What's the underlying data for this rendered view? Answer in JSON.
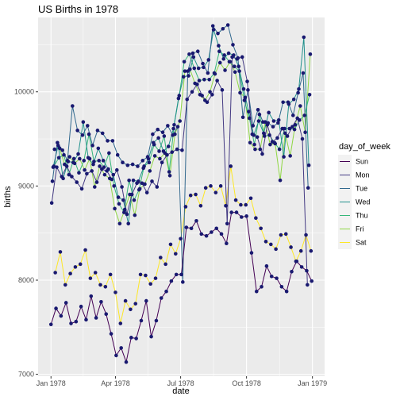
{
  "chart_data": {
    "type": "line",
    "title": "US Births in 1978",
    "xlabel": "date",
    "ylabel": "births",
    "x_ticks": [
      "Jan 1978",
      "Apr 1978",
      "Jul 1978",
      "Oct 1978",
      "Jan 1979"
    ],
    "y_ticks": [
      "7000",
      "8000",
      "9000",
      "10000"
    ],
    "ylim": [
      6980,
      10790
    ],
    "xlim_start": "1977-12-14",
    "xlim_end": "1979-01-18",
    "legend_position": "right",
    "legend": {
      "title": "day_of_week",
      "entries": [
        {
          "label": "Sun",
          "color": "#440154"
        },
        {
          "label": "Mon",
          "color": "#443A83"
        },
        {
          "label": "Tue",
          "color": "#31688E"
        },
        {
          "label": "Wed",
          "color": "#21908C"
        },
        {
          "label": "Thu",
          "color": "#35B779"
        },
        {
          "label": "Fri",
          "color": "#8FD744"
        },
        {
          "label": "Sat",
          "color": "#FDE725"
        }
      ]
    },
    "point_color": "#191970",
    "grid": true,
    "panel_background": "#EBEBEB",
    "line_note": "",
    "series": [
      {
        "name": "Sun",
        "x": [
          "1978-01-01",
          "1978-01-08",
          "1978-01-15",
          "1978-01-22",
          "1978-01-29",
          "1978-02-05",
          "1978-02-12",
          "1978-02-19",
          "1978-02-26",
          "1978-03-05",
          "1978-03-12",
          "1978-03-19",
          "1978-03-26",
          "1978-04-02",
          "1978-04-09",
          "1978-04-16",
          "1978-04-23",
          "1978-04-30",
          "1978-05-07",
          "1978-05-14",
          "1978-05-21",
          "1978-05-28",
          "1978-06-04",
          "1978-06-11",
          "1978-06-18",
          "1978-06-25",
          "1978-07-02",
          "1978-07-09",
          "1978-07-16",
          "1978-07-23",
          "1978-07-30",
          "1978-08-06",
          "1978-08-13",
          "1978-08-20",
          "1978-08-27",
          "1978-09-03",
          "1978-09-10",
          "1978-09-17",
          "1978-09-24",
          "1978-10-01",
          "1978-10-08",
          "1978-10-15",
          "1978-10-22",
          "1978-10-29",
          "1978-11-05",
          "1978-11-12",
          "1978-11-19",
          "1978-11-26",
          "1978-12-03",
          "1978-12-10",
          "1978-12-17",
          "1978-12-24",
          "1978-12-31"
        ],
        "values": [
          7530,
          7700,
          7620,
          7760,
          7540,
          7560,
          7720,
          7580,
          7830,
          7600,
          7770,
          7640,
          7430,
          7200,
          7280,
          7130,
          7390,
          7380,
          7570,
          7780,
          7400,
          7570,
          7810,
          7880,
          7990,
          8060,
          8060,
          8560,
          8550,
          8630,
          8490,
          8470,
          8510,
          8550,
          8490,
          8390,
          8720,
          8720,
          8670,
          8680,
          8290,
          7880,
          7930,
          8150,
          8040,
          8020,
          7930,
          7880,
          8090,
          8200,
          8140,
          8100,
          7990
        ]
      },
      {
        "name": "Sat",
        "x": [
          "1978-01-07",
          "1978-01-14",
          "1978-01-21",
          "1978-01-28",
          "1978-02-04",
          "1978-02-11",
          "1978-02-18",
          "1978-02-25",
          "1978-03-04",
          "1978-03-11",
          "1978-03-18",
          "1978-03-25",
          "1978-04-01",
          "1978-04-08",
          "1978-04-15",
          "1978-04-22",
          "1978-04-29",
          "1978-05-06",
          "1978-05-13",
          "1978-05-20",
          "1978-05-27",
          "1978-06-03",
          "1978-06-10",
          "1978-06-17",
          "1978-06-24",
          "1978-07-01",
          "1978-07-08",
          "1978-07-15",
          "1978-07-22",
          "1978-07-29",
          "1978-08-05",
          "1978-08-12",
          "1978-08-19",
          "1978-08-26",
          "1978-09-02",
          "1978-09-09",
          "1978-09-16",
          "1978-09-23",
          "1978-09-30",
          "1978-10-07",
          "1978-10-14",
          "1978-10-21",
          "1978-10-28",
          "1978-11-04",
          "1978-11-11",
          "1978-11-18",
          "1978-11-25",
          "1978-12-02",
          "1978-12-09",
          "1978-12-16",
          "1978-12-23",
          "1978-12-30"
        ],
        "values": [
          8080,
          8300,
          7950,
          8070,
          8140,
          8170,
          8320,
          8020,
          8080,
          7950,
          7930,
          8060,
          7870,
          7540,
          7780,
          7690,
          7750,
          8060,
          8050,
          7960,
          8020,
          8240,
          8170,
          8380,
          8280,
          8440,
          8780,
          8900,
          8910,
          8790,
          8980,
          9000,
          8930,
          9000,
          8790,
          9210,
          8850,
          8800,
          8800,
          8870,
          8660,
          8550,
          8410,
          8380,
          8330,
          8480,
          8490,
          8350,
          8200,
          8310,
          8480,
          8310
        ]
      },
      {
        "name": "Mon",
        "x": [
          "1978-01-02",
          "1978-01-09",
          "1978-01-16",
          "1978-01-23",
          "1978-01-30",
          "1978-02-06",
          "1978-02-13",
          "1978-02-20",
          "1978-02-27",
          "1978-03-06",
          "1978-03-13",
          "1978-03-20",
          "1978-03-27",
          "1978-04-03",
          "1978-04-10",
          "1978-04-17",
          "1978-04-24",
          "1978-05-01",
          "1978-05-08",
          "1978-05-15",
          "1978-05-22",
          "1978-05-29",
          "1978-06-05",
          "1978-06-12",
          "1978-06-19",
          "1978-06-26",
          "1978-07-03",
          "1978-07-10",
          "1978-07-17",
          "1978-07-24",
          "1978-07-31",
          "1978-08-07",
          "1978-08-14",
          "1978-08-21",
          "1978-08-28",
          "1978-09-04",
          "1978-09-11",
          "1978-09-18",
          "1978-09-25",
          "1978-10-02",
          "1978-10-09",
          "1978-10-16",
          "1978-10-23",
          "1978-10-30",
          "1978-11-06",
          "1978-11-13",
          "1978-11-20",
          "1978-11-27",
          "1978-12-04",
          "1978-12-11",
          "1978-12-18",
          "1978-12-25"
        ],
        "values": [
          8820,
          9200,
          9100,
          9210,
          9100,
          9040,
          8970,
          9130,
          9160,
          9040,
          9180,
          9160,
          9070,
          9170,
          8990,
          8700,
          8910,
          9030,
          9030,
          8930,
          9050,
          8990,
          9250,
          9330,
          9360,
          9390,
          9380,
          9920,
          10000,
          10080,
          9960,
          9890,
          9970,
          10120,
          10020,
          8600,
          10370,
          10350,
          10370,
          10110,
          9550,
          9520,
          9340,
          9650,
          9470,
          9510,
          9610,
          9530,
          9630,
          9720,
          9500,
          7950
        ]
      },
      {
        "name": "Tue",
        "x": [
          "1978-01-03",
          "1978-01-10",
          "1978-01-17",
          "1978-01-24",
          "1978-01-31",
          "1978-02-07",
          "1978-02-14",
          "1978-02-21",
          "1978-02-28",
          "1978-03-07",
          "1978-03-14",
          "1978-03-21",
          "1978-03-28",
          "1978-04-04",
          "1978-04-11",
          "1978-04-18",
          "1978-04-25",
          "1978-05-02",
          "1978-05-09",
          "1978-05-16",
          "1978-05-23",
          "1978-05-30",
          "1978-06-06",
          "1978-06-13",
          "1978-06-20",
          "1978-06-27",
          "1978-07-04",
          "1978-07-11",
          "1978-07-18",
          "1978-07-25",
          "1978-08-01",
          "1978-08-08",
          "1978-08-15",
          "1978-08-22",
          "1978-08-29",
          "1978-09-05",
          "1978-09-12",
          "1978-09-19",
          "1978-09-26",
          "1978-10-03",
          "1978-10-10",
          "1978-10-17",
          "1978-10-24",
          "1978-10-31",
          "1978-11-07",
          "1978-11-14",
          "1978-11-21",
          "1978-11-28",
          "1978-12-05",
          "1978-12-12",
          "1978-12-19",
          "1978-12-26"
        ],
        "values": [
          9050,
          9460,
          9380,
          9270,
          9850,
          9590,
          9540,
          9640,
          9430,
          9590,
          9560,
          9480,
          9480,
          9330,
          9250,
          9220,
          9230,
          9210,
          9270,
          9310,
          9550,
          9600,
          9570,
          9640,
          9540,
          9630,
          7980,
          10220,
          10410,
          10430,
          10300,
          10200,
          10700,
          10620,
          10670,
          10710,
          10500,
          10360,
          9730,
          10020,
          9640,
          9810,
          9680,
          9670,
          9630,
          9670,
          9890,
          9890,
          9750,
          9990,
          10200,
          8980
        ]
      },
      {
        "name": "Wed",
        "x": [
          "1978-01-04",
          "1978-01-11",
          "1978-01-18",
          "1978-01-25",
          "1978-02-01",
          "1978-02-08",
          "1978-02-15",
          "1978-02-22",
          "1978-03-01",
          "1978-03-08",
          "1978-03-15",
          "1978-03-22",
          "1978-03-29",
          "1978-04-05",
          "1978-04-12",
          "1978-04-19",
          "1978-04-26",
          "1978-05-03",
          "1978-05-10",
          "1978-05-17",
          "1978-05-24",
          "1978-05-31",
          "1978-06-07",
          "1978-06-14",
          "1978-06-21",
          "1978-06-28",
          "1978-07-05",
          "1978-07-12",
          "1978-07-19",
          "1978-07-26",
          "1978-08-02",
          "1978-08-09",
          "1978-08-16",
          "1978-08-23",
          "1978-08-30",
          "1978-09-06",
          "1978-09-13",
          "1978-09-20",
          "1978-09-27",
          "1978-10-04",
          "1978-10-11",
          "1978-10-18",
          "1978-10-25",
          "1978-11-01",
          "1978-11-08",
          "1978-11-15",
          "1978-11-22",
          "1978-11-29",
          "1978-12-06",
          "1978-12-13",
          "1978-12-20",
          "1978-12-27"
        ],
        "values": [
          9200,
          9430,
          9080,
          9260,
          9250,
          9340,
          9680,
          9300,
          9230,
          9400,
          9270,
          9180,
          9120,
          8880,
          8850,
          8600,
          9060,
          9050,
          9190,
          9290,
          9460,
          9510,
          9370,
          9420,
          9610,
          9930,
          10160,
          10170,
          10370,
          10250,
          10260,
          10340,
          10660,
          10490,
          10350,
          10410,
          10390,
          10270,
          10030,
          9790,
          9540,
          9690,
          9560,
          9780,
          9690,
          9700,
          9310,
          9870,
          9920,
          10030,
          10580,
          9220
        ]
      },
      {
        "name": "Thu",
        "x": [
          "1978-01-05",
          "1978-01-12",
          "1978-01-19",
          "1978-01-26",
          "1978-02-02",
          "1978-02-09",
          "1978-02-16",
          "1978-02-23",
          "1978-03-02",
          "1978-03-09",
          "1978-03-16",
          "1978-03-23",
          "1978-03-30",
          "1978-04-06",
          "1978-04-13",
          "1978-04-20",
          "1978-04-27",
          "1978-05-04",
          "1978-05-11",
          "1978-05-18",
          "1978-05-25",
          "1978-06-01",
          "1978-06-08",
          "1978-06-15",
          "1978-06-22",
          "1978-06-29",
          "1978-07-06",
          "1978-07-13",
          "1978-07-20",
          "1978-07-27",
          "1978-08-03",
          "1978-08-10",
          "1978-08-17",
          "1978-08-24",
          "1978-08-31",
          "1978-09-07",
          "1978-09-14",
          "1978-09-21",
          "1978-09-28",
          "1978-10-05",
          "1978-10-12",
          "1978-10-19",
          "1978-10-26",
          "1978-11-02",
          "1978-11-09",
          "1978-11-16",
          "1978-11-23",
          "1978-11-30",
          "1978-12-07",
          "1978-12-14",
          "1978-12-21",
          "1978-12-28"
        ],
        "values": [
          9210,
          9300,
          9330,
          9120,
          9290,
          9140,
          9270,
          9550,
          9260,
          9270,
          9200,
          9350,
          9000,
          8810,
          8720,
          9060,
          8850,
          8960,
          9210,
          9250,
          9440,
          9370,
          9530,
          9150,
          9650,
          9960,
          10320,
          10400,
          10250,
          10120,
          10130,
          10130,
          10200,
          10430,
          10390,
          10320,
          10270,
          10220,
          9910,
          9720,
          9440,
          9760,
          9530,
          9540,
          9460,
          9390,
          9610,
          9610,
          9600,
          9700,
          9750,
          9970
        ]
      },
      {
        "name": "Fri",
        "x": [
          "1978-01-06",
          "1978-01-13",
          "1978-01-20",
          "1978-01-27",
          "1978-02-03",
          "1978-02-10",
          "1978-02-17",
          "1978-02-24",
          "1978-03-03",
          "1978-03-10",
          "1978-03-17",
          "1978-03-24",
          "1978-03-31",
          "1978-04-07",
          "1978-04-14",
          "1978-04-21",
          "1978-04-28",
          "1978-05-05",
          "1978-05-12",
          "1978-05-19",
          "1978-05-26",
          "1978-06-02",
          "1978-06-09",
          "1978-06-16",
          "1978-06-23",
          "1978-06-30",
          "1978-07-07",
          "1978-07-14",
          "1978-07-21",
          "1978-07-28",
          "1978-08-04",
          "1978-08-11",
          "1978-08-18",
          "1978-08-25",
          "1978-09-01",
          "1978-09-08",
          "1978-09-15",
          "1978-09-22",
          "1978-09-29",
          "1978-10-06",
          "1978-10-13",
          "1978-10-20",
          "1978-10-27",
          "1978-11-03",
          "1978-11-10",
          "1978-11-17",
          "1978-11-24",
          "1978-12-01",
          "1978-12-08",
          "1978-12-15",
          "1978-12-22",
          "1978-12-29"
        ],
        "values": [
          9390,
          9400,
          9230,
          9310,
          9240,
          9290,
          9170,
          9290,
          8990,
          9210,
          9120,
          9080,
          8760,
          8600,
          8750,
          8910,
          8690,
          8970,
          9020,
          9160,
          9320,
          9290,
          9350,
          9110,
          9550,
          9690,
          10220,
          10240,
          10090,
          9970,
          9910,
          10000,
          10190,
          10310,
          10230,
          10320,
          10210,
          9990,
          9940,
          9460,
          9390,
          9390,
          9680,
          9440,
          9450,
          9060,
          9560,
          9320,
          9650,
          9850,
          9570,
          10400
        ]
      }
    ]
  }
}
